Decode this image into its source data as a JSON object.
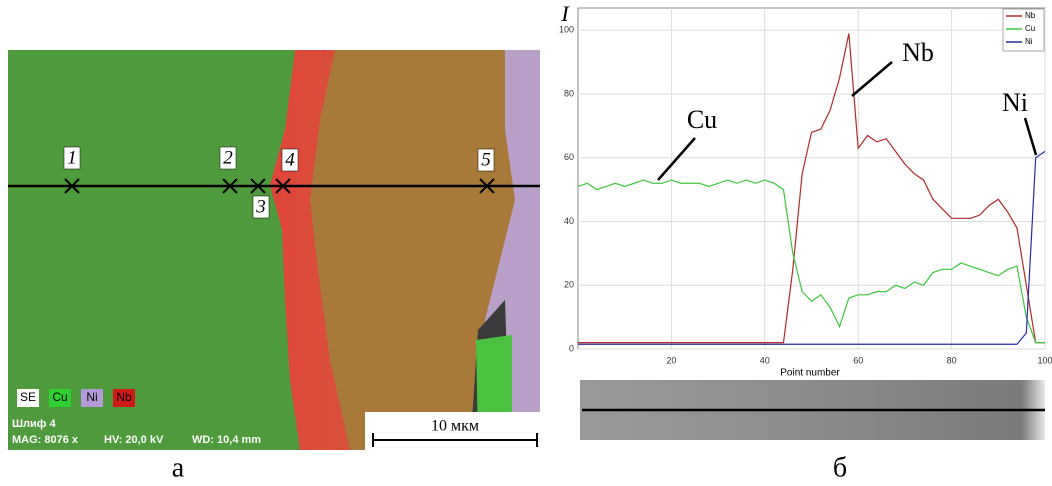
{
  "image_panel": {
    "point_labels": [
      "1",
      "2",
      "3",
      "4",
      "5"
    ],
    "legend": [
      "SE",
      "Cu",
      "Ni",
      "Nb"
    ],
    "sample": "Шлиф 4",
    "mag": "MAG: 8076 x",
    "hv": "HV: 20,0 kV",
    "wd": "WD: 10,4 mm",
    "scale_bar": "10 мкм",
    "caption": "а"
  },
  "chart_data": {
    "type": "line",
    "y_label": "I",
    "x_label": "Point number",
    "caption": "б",
    "xlim": [
      0,
      100
    ],
    "ylim": [
      0,
      107
    ],
    "xticks": [
      20,
      40,
      60,
      80,
      100
    ],
    "yticks": [
      0,
      20,
      40,
      60,
      80,
      100
    ],
    "grid": true,
    "legend_position": "upper right",
    "x": [
      0,
      2,
      4,
      6,
      8,
      10,
      12,
      14,
      16,
      18,
      20,
      22,
      24,
      26,
      28,
      30,
      32,
      34,
      36,
      38,
      40,
      42,
      44,
      46,
      48,
      50,
      52,
      54,
      56,
      58,
      60,
      62,
      64,
      66,
      68,
      70,
      72,
      74,
      76,
      78,
      80,
      82,
      84,
      86,
      88,
      90,
      92,
      94,
      96,
      98,
      100
    ],
    "series": [
      {
        "name": "Nb",
        "color": "#b02a2a",
        "values": [
          2,
          2,
          2,
          2,
          2,
          2,
          2,
          2,
          2,
          2,
          2,
          2,
          2,
          2,
          2,
          2,
          2,
          2,
          2,
          2,
          2,
          2,
          2,
          25,
          55,
          68,
          69,
          75,
          85,
          99,
          63,
          67,
          65,
          66,
          62,
          58,
          55,
          53,
          47,
          44,
          41,
          41,
          41,
          42,
          45,
          47,
          43,
          38,
          20,
          2,
          2
        ]
      },
      {
        "name": "Cu",
        "color": "#3cc83c",
        "values": [
          51,
          52,
          50,
          51,
          52,
          51,
          52,
          53,
          52,
          52,
          53,
          52,
          52,
          52,
          51,
          52,
          53,
          52,
          53,
          52,
          53,
          52,
          50,
          30,
          18,
          15,
          17,
          13,
          7,
          16,
          17,
          17,
          18,
          18,
          20,
          19,
          21,
          20,
          24,
          25,
          25,
          27,
          26,
          25,
          24,
          23,
          25,
          26,
          10,
          2,
          2
        ]
      },
      {
        "name": "Ni",
        "color": "#2a2aa8",
        "values": [
          1.5,
          1.5,
          1.5,
          1.5,
          1.5,
          1.5,
          1.5,
          1.5,
          1.5,
          1.5,
          1.5,
          1.5,
          1.5,
          1.5,
          1.5,
          1.5,
          1.5,
          1.5,
          1.5,
          1.5,
          1.5,
          1.5,
          1.5,
          1.5,
          1.5,
          1.5,
          1.5,
          1.5,
          1.5,
          1.5,
          1.5,
          1.5,
          1.5,
          1.5,
          1.5,
          1.5,
          1.5,
          1.5,
          1.5,
          1.5,
          1.5,
          1.5,
          1.5,
          1.5,
          1.5,
          1.5,
          1.5,
          1.5,
          5,
          60,
          62
        ]
      }
    ],
    "annotations": [
      "Cu",
      "Nb",
      "Ni"
    ]
  }
}
